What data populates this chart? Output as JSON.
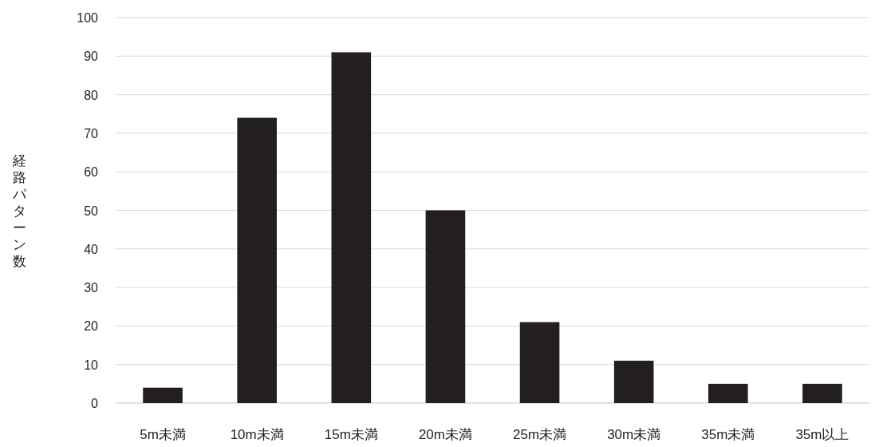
{
  "chart_data": {
    "type": "bar",
    "ylabel": "経路パターン数",
    "categories": [
      "5m未満",
      "10m未満",
      "15m未満",
      "20m未満",
      "25m未満",
      "30m未満",
      "35m未満",
      "35m以上"
    ],
    "values": [
      4,
      74,
      91,
      50,
      21,
      11,
      5,
      5
    ],
    "color": "#231f20",
    "ylim": [
      0,
      100
    ],
    "yticks": [
      0,
      10,
      20,
      30,
      40,
      50,
      60,
      70,
      80,
      90,
      100
    ],
    "grid": "y"
  }
}
